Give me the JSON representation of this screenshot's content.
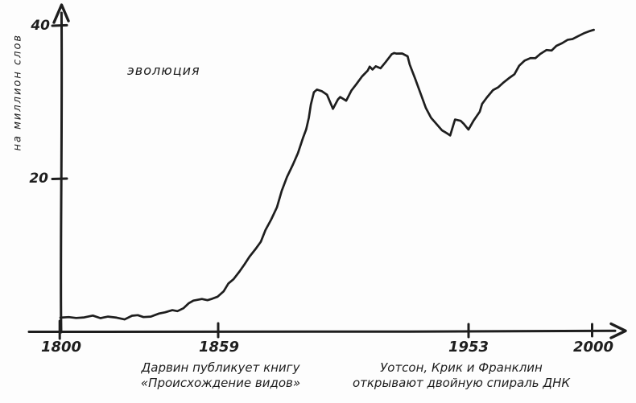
{
  "page": {
    "background_color": "#fdfdfd",
    "ink_color": "#1e1e1e",
    "style": "hand-drawn ngram chart"
  },
  "chart_data": {
    "type": "line",
    "title": "",
    "xlabel": "",
    "ylabel": "на миллион слов",
    "xlim": [
      1800,
      2000
    ],
    "ylim": [
      0,
      42
    ],
    "grid": false,
    "legend_position": "none",
    "line_color": "#1e1e1e",
    "x_ticks": [
      1800,
      1859,
      1953,
      2000
    ],
    "y_ticks": [
      40,
      20
    ],
    "series": [
      {
        "name": "эволюция",
        "points": [
          [
            1800,
            1.8
          ],
          [
            1803,
            1.9
          ],
          [
            1806,
            1.7
          ],
          [
            1809,
            1.9
          ],
          [
            1812,
            2.0
          ],
          [
            1815,
            1.8
          ],
          [
            1818,
            1.9
          ],
          [
            1821,
            1.8
          ],
          [
            1824,
            1.6
          ],
          [
            1827,
            2.0
          ],
          [
            1829,
            2.2
          ],
          [
            1831,
            1.8
          ],
          [
            1834,
            2.0
          ],
          [
            1837,
            2.3
          ],
          [
            1839,
            2.5
          ],
          [
            1842,
            2.8
          ],
          [
            1844,
            2.6
          ],
          [
            1846,
            3.1
          ],
          [
            1848,
            3.6
          ],
          [
            1850,
            4.1
          ],
          [
            1853,
            4.2
          ],
          [
            1855,
            4.1
          ],
          [
            1857,
            4.3
          ],
          [
            1859,
            4.5
          ],
          [
            1861,
            5.3
          ],
          [
            1863,
            6.2
          ],
          [
            1865,
            6.9
          ],
          [
            1867,
            7.8
          ],
          [
            1869,
            8.8
          ],
          [
            1871,
            9.8
          ],
          [
            1873,
            10.7
          ],
          [
            1875,
            11.8
          ],
          [
            1877,
            13.2
          ],
          [
            1879,
            14.7
          ],
          [
            1881,
            16.2
          ],
          [
            1883,
            18.4
          ],
          [
            1885,
            20.2
          ],
          [
            1887,
            21.8
          ],
          [
            1889,
            23.4
          ],
          [
            1891,
            25.2
          ],
          [
            1892,
            26.5
          ],
          [
            1893,
            27.9
          ],
          [
            1894,
            29.7
          ],
          [
            1895,
            31.3
          ],
          [
            1896,
            31.6
          ],
          [
            1898,
            31.5
          ],
          [
            1900,
            30.9
          ],
          [
            1902,
            29.2
          ],
          [
            1904,
            30.3
          ],
          [
            1905,
            30.7
          ],
          [
            1907,
            30.2
          ],
          [
            1909,
            31.5
          ],
          [
            1911,
            32.4
          ],
          [
            1913,
            33.3
          ],
          [
            1915,
            34.2
          ],
          [
            1916,
            34.6
          ],
          [
            1917,
            34.3
          ],
          [
            1918,
            34.7
          ],
          [
            1920,
            34.4
          ],
          [
            1922,
            35.3
          ],
          [
            1924,
            36.2
          ],
          [
            1925,
            36.5
          ],
          [
            1926,
            36.3
          ],
          [
            1928,
            36.4
          ],
          [
            1930,
            36.0
          ],
          [
            1931,
            34.9
          ],
          [
            1933,
            33.1
          ],
          [
            1935,
            30.9
          ],
          [
            1937,
            29.3
          ],
          [
            1939,
            27.9
          ],
          [
            1941,
            27.1
          ],
          [
            1943,
            26.3
          ],
          [
            1945,
            25.9
          ],
          [
            1946,
            25.7
          ],
          [
            1947,
            26.8
          ],
          [
            1948,
            27.8
          ],
          [
            1950,
            27.5
          ],
          [
            1951,
            27.2
          ],
          [
            1953,
            26.4
          ],
          [
            1955,
            27.6
          ],
          [
            1957,
            28.8
          ],
          [
            1958,
            29.7
          ],
          [
            1960,
            30.7
          ],
          [
            1962,
            31.5
          ],
          [
            1964,
            32.0
          ],
          [
            1966,
            32.5
          ],
          [
            1968,
            33.1
          ],
          [
            1970,
            33.7
          ],
          [
            1972,
            34.7
          ],
          [
            1974,
            35.5
          ],
          [
            1976,
            35.7
          ],
          [
            1978,
            35.8
          ],
          [
            1980,
            36.3
          ],
          [
            1982,
            36.8
          ],
          [
            1984,
            36.8
          ],
          [
            1986,
            37.3
          ],
          [
            1988,
            37.8
          ],
          [
            1990,
            38.1
          ],
          [
            1992,
            38.3
          ],
          [
            1994,
            38.6
          ],
          [
            1996,
            39.0
          ],
          [
            1998,
            39.3
          ],
          [
            2000,
            39.4
          ]
        ]
      }
    ],
    "annotations": [
      {
        "year": 1859,
        "lines": [
          "Дарвин публикует книгу",
          "«Происхождение видов»"
        ]
      },
      {
        "year": 1953,
        "lines": [
          "Уотсон, Крик и Франклин",
          "открывают двойную спираль ДНК"
        ]
      }
    ]
  }
}
